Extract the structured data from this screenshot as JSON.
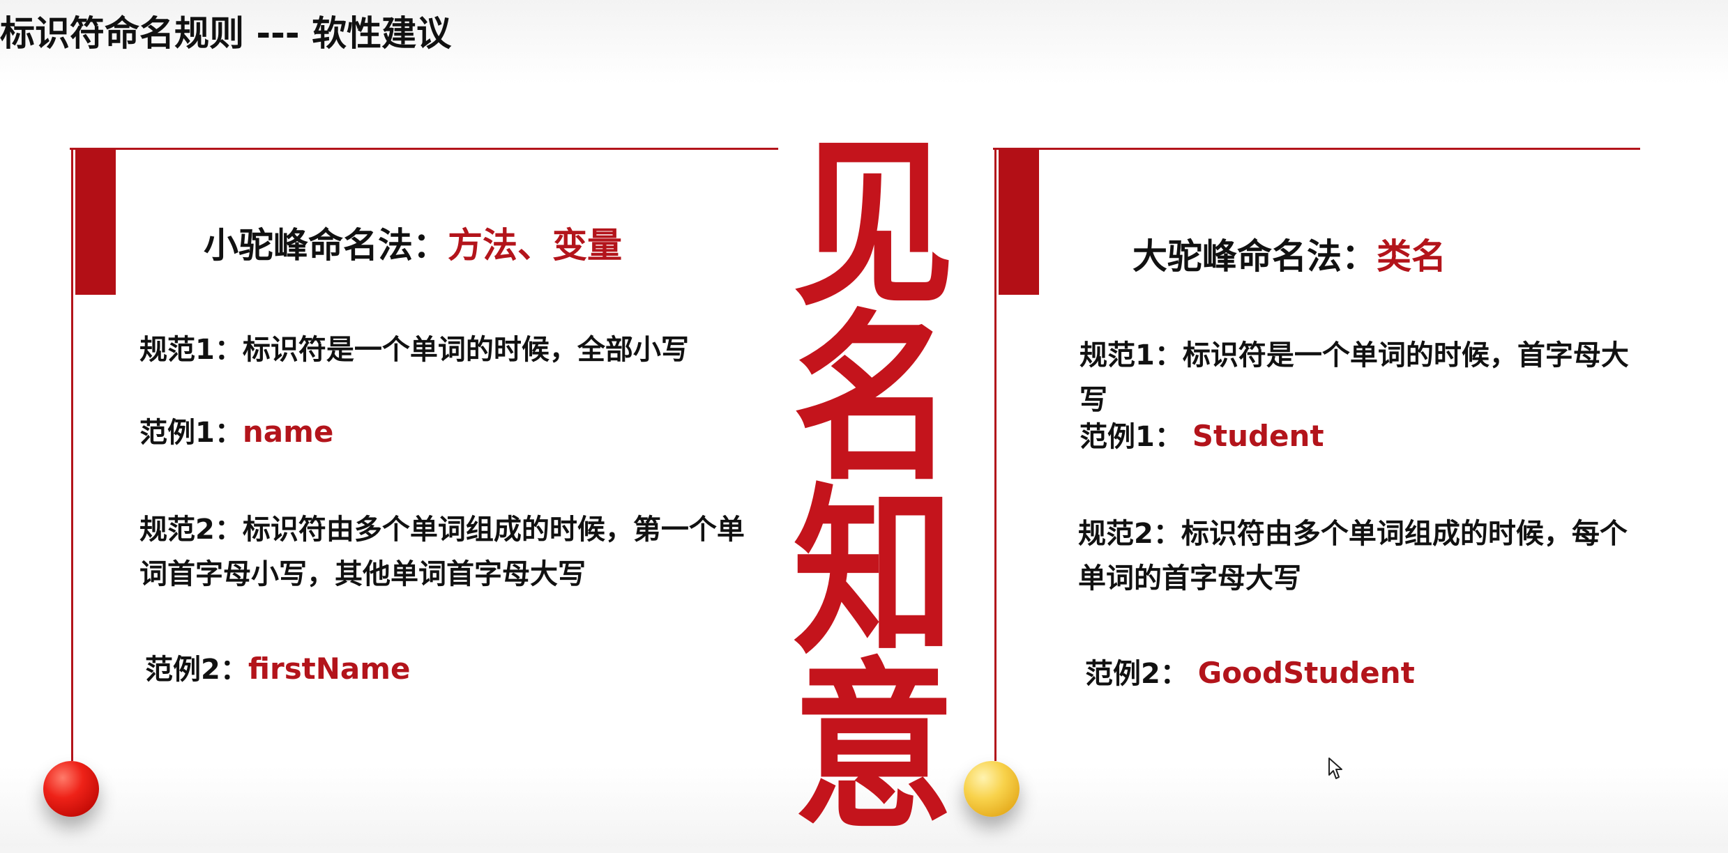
{
  "slide": {
    "title": "标识符命名规则 --- 软性建议"
  },
  "center": {
    "chars": [
      "见",
      "名",
      "知",
      "意"
    ],
    "color": "#c4141c"
  },
  "left_panel": {
    "heading_prefix": "小驼峰命名法：",
    "heading_highlight": "方法、变量",
    "rule1": "规范1：标识符是一个单词的时候，全部小写",
    "example1_label": "范例1：",
    "example1_value": "name",
    "rule2": "规范2：标识符由多个单词组成的时候，第一个单词首字母小写，其他单词首字母大写",
    "example2_label": "范例2：",
    "example2_value": "firstName",
    "ball_color": "#ee2218"
  },
  "right_panel": {
    "heading_prefix": "大驼峰命名法：",
    "heading_highlight": "类名",
    "rule1": "规范1：标识符是一个单词的时候，首字母大写",
    "example1_label": "范例1： ",
    "example1_value": "Student",
    "rule2": "规范2：标识符由多个单词组成的时候，每个单词的首字母大写",
    "example2_label": "范例2： ",
    "example2_value": "GoodStudent",
    "ball_color": "#f8d24b"
  },
  "colors": {
    "accent": "#b3141b",
    "text": "#111111"
  }
}
